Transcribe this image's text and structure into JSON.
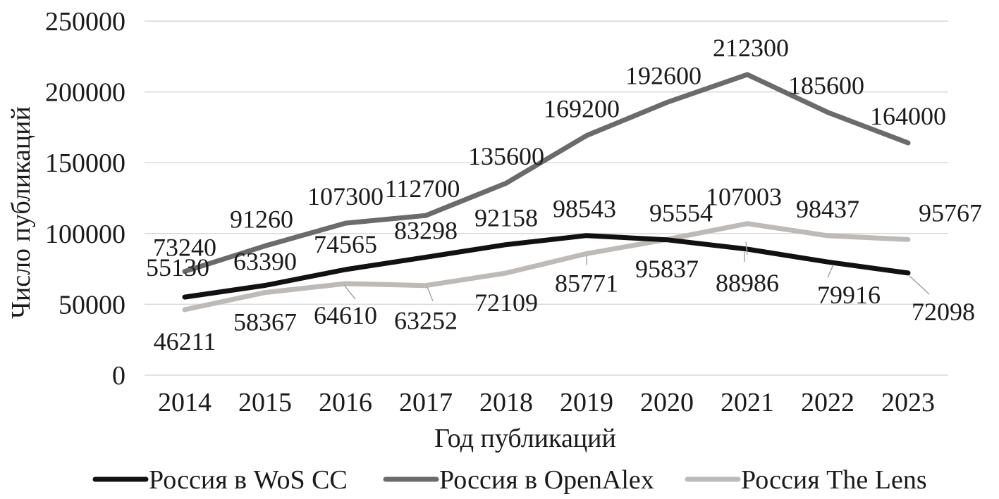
{
  "chart_data": {
    "type": "line",
    "xlabel": "Год публикаций",
    "ylabel": "Число публикаций",
    "categories": [
      "2014",
      "2015",
      "2016",
      "2017",
      "2018",
      "2019",
      "2020",
      "2021",
      "2022",
      "2023"
    ],
    "ylim": [
      0,
      250000
    ],
    "yticks": [
      "0",
      "50000",
      "100000",
      "150000",
      "200000",
      "250000"
    ],
    "grid": true,
    "legend_position": "bottom",
    "series": [
      {
        "name": "Россия в WoS CC",
        "color": "#111111",
        "values": [
          55130,
          63390,
          74565,
          83298,
          92158,
          98543,
          95554,
          88986,
          79916,
          72098
        ],
        "labels": [
          "55130",
          "63390",
          "74565",
          "83298",
          "92158",
          "98543",
          "95554",
          "88986",
          "79916",
          "72098"
        ]
      },
      {
        "name": "Россия в OpenAlex",
        "color": "#6b6b6b",
        "values": [
          73240,
          91260,
          107300,
          112700,
          135600,
          169200,
          192600,
          212300,
          185600,
          164000
        ],
        "labels": [
          "73240",
          "91260",
          "107300",
          "112700",
          "135600",
          "169200",
          "192600",
          "212300",
          "185600",
          "164000"
        ]
      },
      {
        "name": "Россия The Lens",
        "color": "#bdbab7",
        "values": [
          46211,
          58367,
          64610,
          63252,
          72109,
          85771,
          95837,
          107003,
          98437,
          95767
        ],
        "labels": [
          "46211",
          "58367",
          "64610",
          "63252",
          "72109",
          "85771",
          "95837",
          "107003",
          "98437",
          "95767"
        ]
      }
    ]
  }
}
